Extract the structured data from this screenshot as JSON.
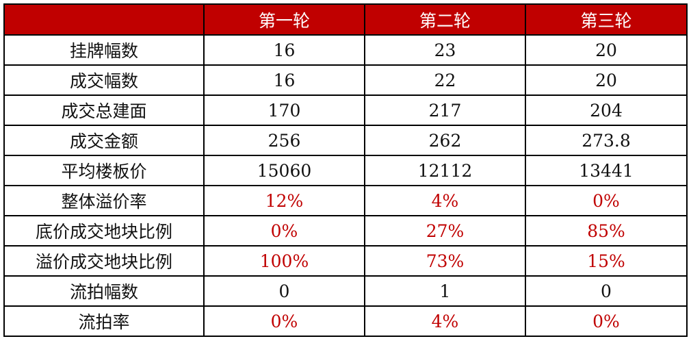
{
  "colors": {
    "header_bg": "#c00000",
    "highlight": "#c00000"
  },
  "header": [
    "",
    "第一轮",
    "第二轮",
    "第三轮"
  ],
  "rows": [
    {
      "label": "挂牌幅数",
      "values": [
        "16",
        "23",
        "20"
      ],
      "highlight": false
    },
    {
      "label": "成交幅数",
      "values": [
        "16",
        "22",
        "20"
      ],
      "highlight": false
    },
    {
      "label": "成交总建面",
      "values": [
        "170",
        "217",
        "204"
      ],
      "highlight": false
    },
    {
      "label": "成交金额",
      "values": [
        "256",
        "262",
        "273.8"
      ],
      "highlight": false
    },
    {
      "label": "平均楼板价",
      "values": [
        "15060",
        "12112",
        "13441"
      ],
      "highlight": false
    },
    {
      "label": "整体溢价率",
      "values": [
        "12%",
        "4%",
        "0%"
      ],
      "highlight": true
    },
    {
      "label": "底价成交地块比例",
      "values": [
        "0%",
        "27%",
        "85%"
      ],
      "highlight": true
    },
    {
      "label": "溢价成交地块比例",
      "values": [
        "100%",
        "73%",
        "15%"
      ],
      "highlight": true
    },
    {
      "label": "流拍幅数",
      "values": [
        "0",
        "1",
        "0"
      ],
      "highlight": false
    },
    {
      "label": "流拍率",
      "values": [
        "0%",
        "4%",
        "0%"
      ],
      "highlight": true
    }
  ]
}
